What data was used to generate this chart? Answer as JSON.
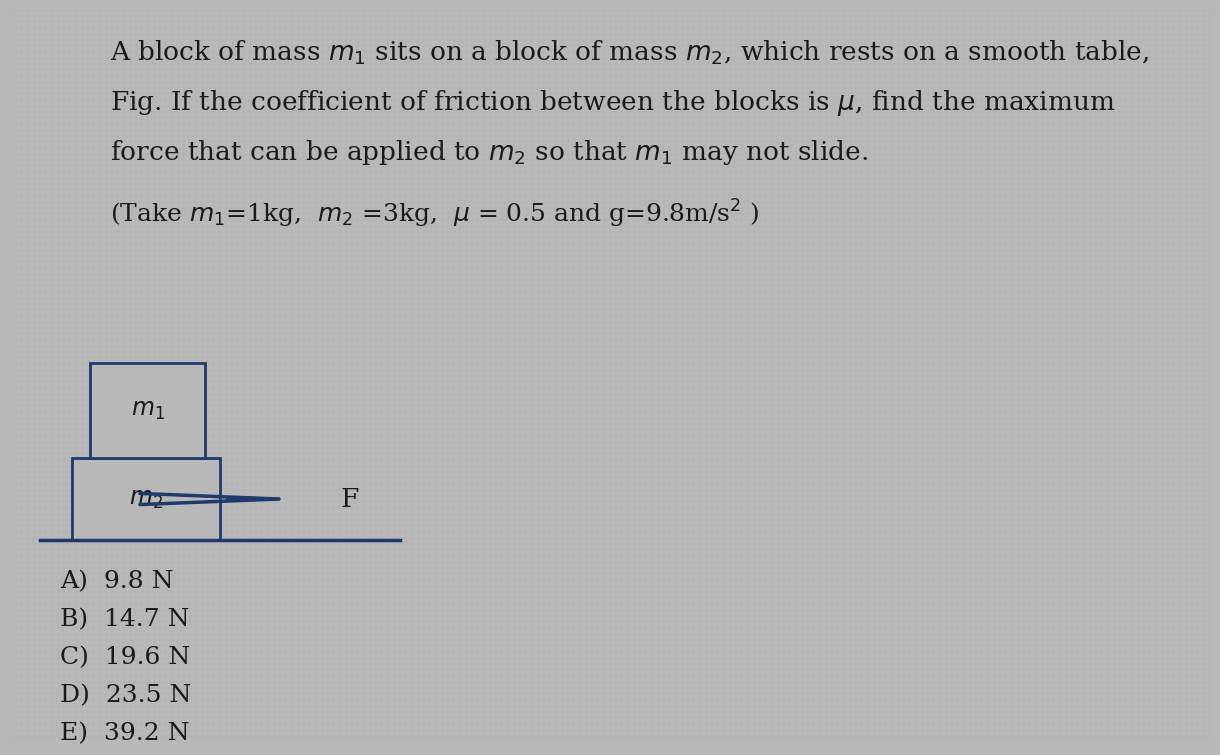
{
  "background_color": "#b8b8b8",
  "title_lines": [
    "A block of mass $m_1$ sits on a block of mass $m_2$, which rests on a smooth table,",
    "Fig. If the coefficient of friction between the blocks is $\\mu$, find the maximum",
    "force that can be applied to $m_2$ so that $m_1$ may not slide."
  ],
  "params_line": "(Take $m_1$=1kg,  $m_2$ =3kg,  $\\mu$ = 0.5 and g=9.8m/s$^2$ )",
  "choices": [
    "A)  9.8 N",
    "B)  14.7 N",
    "C)  19.6 N",
    "D)  23.5 N",
    "E)  39.2 N"
  ],
  "text_color": "#1a1a1a",
  "block_color": "#b8b8b8",
  "block_edge_color": "#1e3a6e",
  "arrow_color": "#1e3a6e",
  "table_line_color": "#1e3a6e",
  "font_size_main": 19,
  "font_size_params": 18,
  "font_size_choices": 18,
  "font_size_labels": 15
}
